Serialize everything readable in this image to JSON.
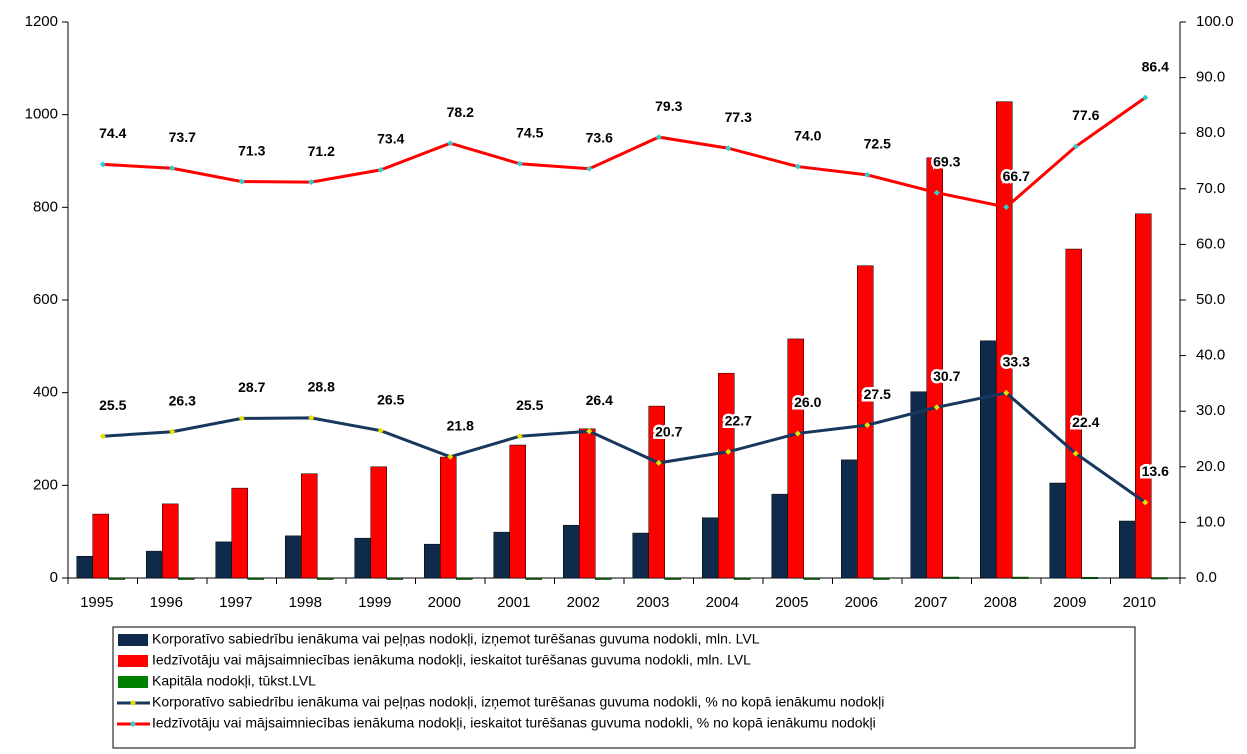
{
  "chart_data": {
    "type": "bar",
    "categories": [
      "1995",
      "1996",
      "1997",
      "1998",
      "1999",
      "2000",
      "2001",
      "2002",
      "2003",
      "2004",
      "2005",
      "2006",
      "2007",
      "2008",
      "2009",
      "2010"
    ],
    "ylim": [
      0,
      1200
    ],
    "yticks": [
      0,
      200,
      400,
      600,
      800,
      1000,
      1200
    ],
    "y2lim": [
      0,
      100
    ],
    "y2ticks": [
      {
        "value": 0,
        "label": "0.0"
      },
      {
        "value": 10,
        "label": "10.0"
      },
      {
        "value": 20,
        "label": "20.0"
      },
      {
        "value": 30,
        "label": "30.0"
      },
      {
        "value": 40,
        "label": "40.0"
      },
      {
        "value": 50,
        "label": "50.0"
      },
      {
        "value": 60,
        "label": "60.0"
      },
      {
        "value": 70,
        "label": "70.0"
      },
      {
        "value": 80,
        "label": "80.0"
      },
      {
        "value": 90,
        "label": "90.0"
      },
      {
        "value": 100,
        "label": "100.0"
      }
    ],
    "legend": "bottom",
    "series": [
      {
        "name": "Korporatīvo sabiedrību ienākuma vai peļņas nodokļi, izņemot turēšanas guvuma nodokli, mln. LVL",
        "type": "bar",
        "color": "#0f2b4c",
        "values": [
          47,
          58,
          78,
          91,
          86,
          73,
          99,
          114,
          97,
          130,
          181,
          255,
          402,
          512,
          205,
          123
        ]
      },
      {
        "name": "Iedzīvotāju vai mājsaimniecības ienākuma nodokļi, ieskaitot turēšanas guvuma nodokli, mln. LVL",
        "type": "bar",
        "color": "#ff0000",
        "values": [
          138,
          160,
          194,
          225,
          240,
          261,
          287,
          322,
          371,
          442,
          516,
          674,
          907,
          1028,
          710,
          786
        ]
      },
      {
        "name": "Kapitāla nodokļi, tūkst.LVL",
        "type": "bar",
        "color": "#008000",
        "values": [
          0,
          0,
          0,
          0,
          0,
          0,
          0,
          0,
          0,
          0,
          0,
          0,
          2,
          2,
          1.5,
          1
        ]
      },
      {
        "name": "Korporatīvo sabiedrību ienākuma vai peļņas nodokļi, izņemot turēšanas guvuma nodokli, % no kopā ienākumu nodokļi",
        "type": "line",
        "axis": "y2",
        "color": "#17375e",
        "marker_color": "#e8e000",
        "values": [
          25.5,
          26.3,
          28.7,
          28.8,
          26.5,
          21.8,
          25.5,
          26.4,
          20.7,
          22.7,
          26.0,
          27.5,
          30.7,
          33.3,
          22.4,
          13.6
        ],
        "value_labels": [
          "25.5",
          "26.3",
          "28.7",
          "28.8",
          "26.5",
          "21.8",
          "25.5",
          "26.4",
          "20.7",
          "22.7",
          "26.0",
          "27.5",
          "30.7",
          "33.3",
          "22.4",
          "13.6"
        ]
      },
      {
        "name": "Iedzīvotāju vai mājsaimniecības ienākuma nodokļi, ieskaitot turēšanas guvuma nodokli, % no kopā ienākumu nodokļi",
        "type": "line",
        "axis": "y2",
        "color": "#ff0000",
        "marker_color": "#33cccc",
        "values": [
          74.4,
          73.7,
          71.3,
          71.2,
          73.4,
          78.2,
          74.5,
          73.6,
          79.3,
          77.3,
          74.0,
          72.5,
          69.3,
          66.7,
          77.6,
          86.4
        ],
        "value_labels": [
          "74.4",
          "73.7",
          "71.3",
          "71.2",
          "73.4",
          "78.2",
          "74.5",
          "73.6",
          "79.3",
          "77.3",
          "74.0",
          "72.5",
          "69.3",
          "66.7",
          "77.6",
          "86.4"
        ]
      }
    ]
  }
}
